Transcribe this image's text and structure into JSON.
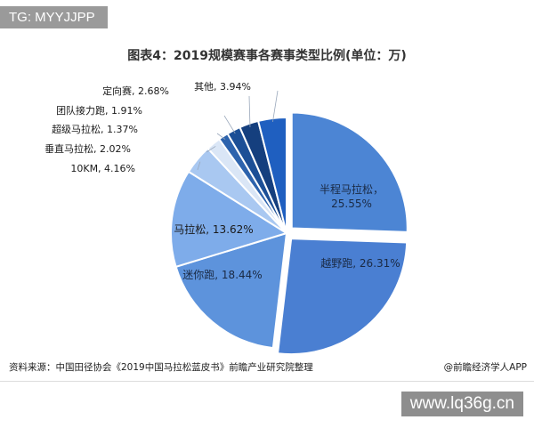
{
  "watermark_badge": "TG: MYYJJPP",
  "site_url": "www.lq36g.cn",
  "source_text": "资料来源：中国田径协会《2019中国马拉松蓝皮书》前瞻产业研究院整理",
  "credit_text": "@前瞻经济学人APP",
  "chart_data": {
    "type": "pie",
    "title": "图表4：2019规模赛事各赛事类型比例(单位：万)",
    "slices": [
      {
        "label": "半程马拉松",
        "value": 25.55,
        "display": "25.55%",
        "color": "#4c85d4"
      },
      {
        "label": "越野跑",
        "value": 26.31,
        "display": "26.31%",
        "color": "#4a7fd2"
      },
      {
        "label": "迷你跑",
        "value": 18.44,
        "display": "18.44%",
        "color": "#5d93dc"
      },
      {
        "label": "马拉松",
        "value": 13.62,
        "display": "13.62%",
        "color": "#7eacea"
      },
      {
        "label": "10KM",
        "value": 4.16,
        "display": "4.16%",
        "color": "#a9c8f1"
      },
      {
        "label": "垂直马拉松",
        "value": 2.02,
        "display": "2.02%",
        "color": "#dae6f6"
      },
      {
        "label": "超级马拉松",
        "value": 1.37,
        "display": "1.37%",
        "color": "#2d63ad"
      },
      {
        "label": "团队接力跑",
        "value": 1.91,
        "display": "1.91%",
        "color": "#1c4f96"
      },
      {
        "label": "定向赛",
        "value": 2.68,
        "display": "2.68%",
        "color": "#153f7e"
      },
      {
        "label": "其他",
        "value": 3.94,
        "display": "3.94%",
        "color": "#1f5fc0"
      }
    ]
  }
}
